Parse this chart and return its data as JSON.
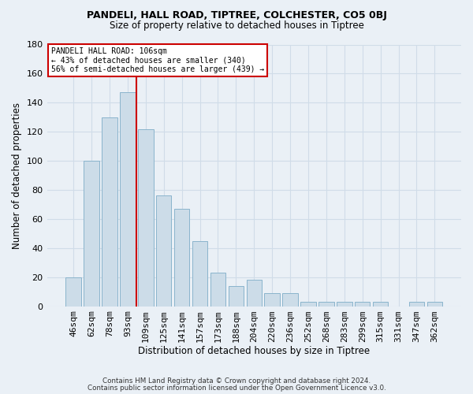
{
  "title1": "PANDELI, HALL ROAD, TIPTREE, COLCHESTER, CO5 0BJ",
  "title2": "Size of property relative to detached houses in Tiptree",
  "xlabel": "Distribution of detached houses by size in Tiptree",
  "ylabel": "Number of detached properties",
  "categories": [
    "46sqm",
    "62sqm",
    "78sqm",
    "93sqm",
    "109sqm",
    "125sqm",
    "141sqm",
    "157sqm",
    "173sqm",
    "188sqm",
    "204sqm",
    "220sqm",
    "236sqm",
    "252sqm",
    "268sqm",
    "283sqm",
    "299sqm",
    "315sqm",
    "331sqm",
    "347sqm",
    "362sqm"
  ],
  "values": [
    20,
    100,
    130,
    147,
    122,
    76,
    67,
    45,
    23,
    14,
    18,
    9,
    9,
    3,
    3,
    3,
    3,
    3,
    0,
    3,
    3
  ],
  "bar_color": "#ccdce8",
  "bar_edge_color": "#8ab4cc",
  "vline_color": "#cc0000",
  "vline_x": 3.5,
  "annotation_line1": "PANDELI HALL ROAD: 106sqm",
  "annotation_line2": "← 43% of detached houses are smaller (340)",
  "annotation_line3": "56% of semi-detached houses are larger (439) →",
  "annotation_box_color": "#ffffff",
  "annotation_box_edge": "#cc0000",
  "ylim": [
    0,
    180
  ],
  "yticks": [
    0,
    20,
    40,
    60,
    80,
    100,
    120,
    140,
    160,
    180
  ],
  "footer1": "Contains HM Land Registry data © Crown copyright and database right 2024.",
  "footer2": "Contains public sector information licensed under the Open Government Licence v3.0.",
  "bg_color": "#eaf0f6",
  "grid_color": "#d0dce8",
  "title1_fontsize": 9,
  "title2_fontsize": 8.5
}
